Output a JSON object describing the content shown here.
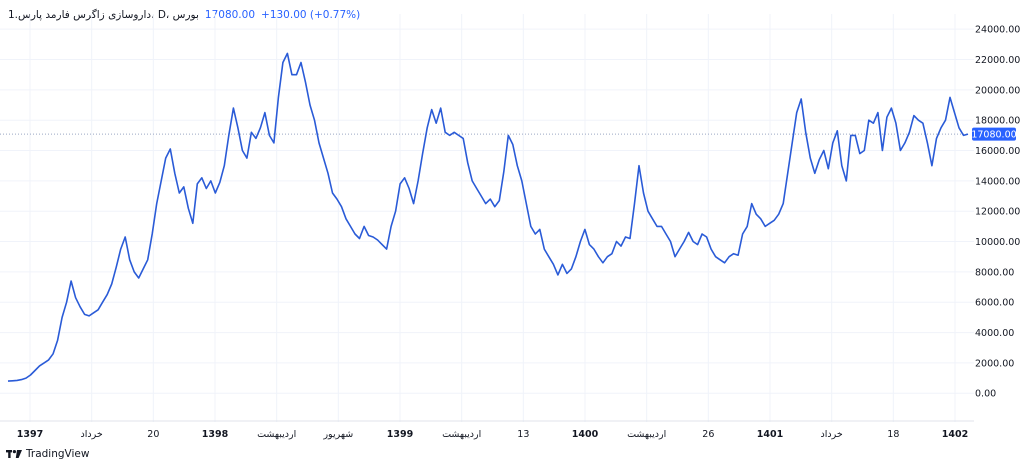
{
  "header": {
    "symbol_name": "1.داروسازی زاگرس فارمد پارس، D، بورس",
    "last_value": "17080.00",
    "change": "+130.00 (+0.77%)"
  },
  "footer": {
    "brand": "TradingView"
  },
  "colors": {
    "line": "#2a5bd7",
    "label_bg": "#2962ff",
    "grid": "#f0f3fa",
    "dotted": "#9aa7c4"
  },
  "chart_data": {
    "type": "line",
    "title": "",
    "xlabel": "",
    "ylabel": "",
    "ylim": [
      -1500,
      25000
    ],
    "y_ticks": [
      0,
      2000,
      4000,
      6000,
      8000,
      10000,
      12000,
      14000,
      16000,
      18000,
      20000,
      22000,
      24000
    ],
    "y_tick_labels": [
      "0.00",
      "2000.00",
      "4000.00",
      "6000.00",
      "8000.00",
      "10000.00",
      "12000.00",
      "14000.00",
      "16000.00",
      "18000.00",
      "20000.00",
      "22000.00",
      "24000.00"
    ],
    "x_tick_labels": [
      "1397",
      "خرداد",
      "20",
      "1398",
      "اردیبهشت",
      "شهریور",
      "1399",
      "اردیبهشت",
      "13",
      "1400",
      "اردیبهشت",
      "26",
      "1401",
      "خرداد",
      "18",
      "1402"
    ],
    "last_price": 17080,
    "last_price_label": "17080.00",
    "grid": true,
    "series": [
      {
        "values": [
          800,
          820,
          850,
          900,
          1000,
          1200,
          1500,
          1800,
          2000,
          2200,
          2600,
          3500,
          5000,
          6000,
          7400,
          6300,
          5700,
          5200,
          5100,
          5300,
          5500,
          6000,
          6500,
          7200,
          8300,
          9500,
          10300,
          8800,
          8000,
          7600,
          8200,
          8800,
          10500,
          12500,
          14000,
          15500,
          16100,
          14500,
          13200,
          13600,
          12200,
          11200,
          13800,
          14200,
          13500,
          14000,
          13200,
          13900,
          15000,
          17000,
          18800,
          17500,
          16000,
          15500,
          17200,
          16800,
          17500,
          18500,
          17000,
          16500,
          19500,
          21800,
          22400,
          21000,
          21000,
          21800,
          20500,
          19000,
          18000,
          16500,
          15500,
          14500,
          13200,
          12800,
          12300,
          11500,
          11000,
          10500,
          10200,
          11000,
          10400,
          10300,
          10100,
          9800,
          9500,
          11000,
          12000,
          13800,
          14200,
          13500,
          12500,
          14000,
          15800,
          17500,
          18700,
          17800,
          18800,
          17200,
          17000,
          17200,
          17000,
          16800,
          15200,
          14000,
          13500,
          13000,
          12500,
          12800,
          12300,
          12700,
          14600,
          17000,
          16400,
          15000,
          14000,
          12500,
          11000,
          10500,
          10800,
          9500,
          9000,
          8500,
          7800,
          8500,
          7900,
          8200,
          9000,
          10000,
          10800,
          9800,
          9500,
          9000,
          8600,
          9000,
          9200,
          10000,
          9700,
          10300,
          10200,
          12500,
          15000,
          13200,
          12000,
          11500,
          11000,
          11000,
          10500,
          10000,
          9000,
          9500,
          10000,
          10600,
          10000,
          9800,
          10500,
          10300,
          9500,
          9000,
          8800,
          8600,
          9000,
          9200,
          9100,
          10500,
          11000,
          12500,
          11800,
          11500,
          11000,
          11200,
          11400,
          11800,
          12500,
          14500,
          16500,
          18500,
          19400,
          17200,
          15500,
          14500,
          15400,
          16000,
          14800,
          16500,
          17300,
          15000,
          14000,
          17000,
          17000,
          15800,
          16000,
          18000,
          17800,
          18500,
          16000,
          18200,
          18800,
          17800,
          16000,
          16500,
          17200,
          18300,
          18000,
          17800,
          16500,
          15000,
          16800,
          17500,
          18000,
          19500,
          18500,
          17500,
          17000,
          17080
        ]
      }
    ]
  }
}
